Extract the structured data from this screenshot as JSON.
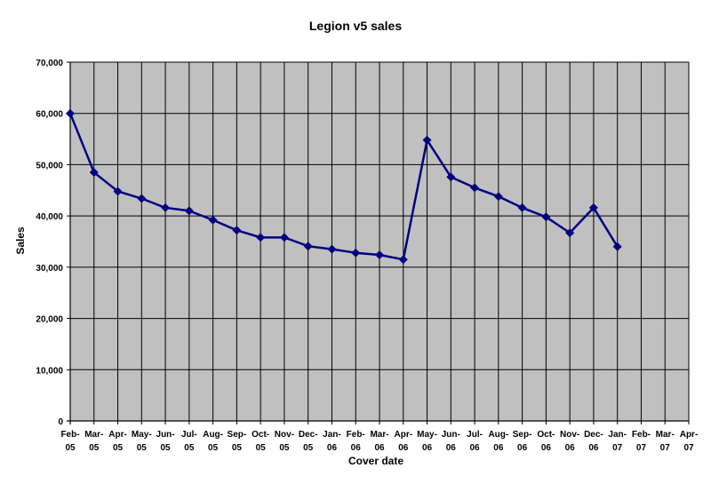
{
  "chart_data": {
    "type": "line",
    "title": "Legion v5 sales",
    "xlabel": "Cover date",
    "ylabel": "Sales",
    "ylim": [
      0,
      70000
    ],
    "yticks": [
      0,
      10000,
      20000,
      30000,
      40000,
      50000,
      60000,
      70000
    ],
    "ytick_labels": [
      "0",
      "10,000",
      "20,000",
      "30,000",
      "40,000",
      "50,000",
      "60,000",
      "70,000"
    ],
    "categories": [
      [
        "Feb-",
        "05"
      ],
      [
        "Mar-",
        "05"
      ],
      [
        "Apr-",
        "05"
      ],
      [
        "May-",
        "05"
      ],
      [
        "Jun-",
        "05"
      ],
      [
        "Jul-",
        "05"
      ],
      [
        "Aug-",
        "05"
      ],
      [
        "Sep-",
        "05"
      ],
      [
        "Oct-",
        "05"
      ],
      [
        "Nov-",
        "05"
      ],
      [
        "Dec-",
        "05"
      ],
      [
        "Jan-",
        "06"
      ],
      [
        "Feb-",
        "06"
      ],
      [
        "Mar-",
        "06"
      ],
      [
        "Apr-",
        "06"
      ],
      [
        "May-",
        "06"
      ],
      [
        "Jun-",
        "06"
      ],
      [
        "Jul-",
        "06"
      ],
      [
        "Aug-",
        "06"
      ],
      [
        "Sep-",
        "06"
      ],
      [
        "Oct-",
        "06"
      ],
      [
        "Nov-",
        "06"
      ],
      [
        "Dec-",
        "06"
      ],
      [
        "Jan-",
        "07"
      ],
      [
        "Feb-",
        "07"
      ],
      [
        "Mar-",
        "07"
      ],
      [
        "Apr-",
        "07"
      ]
    ],
    "series": [
      {
        "values": [
          60000,
          48500,
          44800,
          43400,
          41600,
          41000,
          39200,
          37200,
          35800,
          35800,
          34100,
          33500,
          32800,
          32400,
          31500,
          54800,
          47600,
          45500,
          43800,
          41600,
          39800,
          36700,
          41600,
          34000,
          null,
          null,
          null
        ]
      }
    ],
    "grid": true,
    "plot_background": "#c0c0c0",
    "line_color": "#000080",
    "marker": "diamond"
  }
}
